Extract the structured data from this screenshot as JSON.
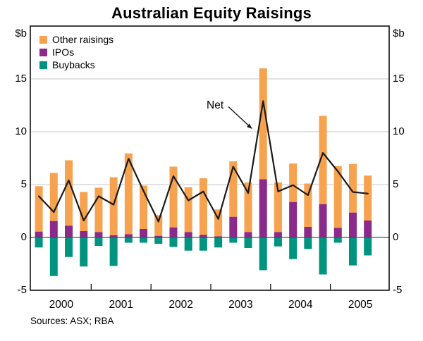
{
  "title": "Australian Equity Raisings",
  "unit_left": "$b",
  "unit_right": "$b",
  "annotation": {
    "net_label": "Net"
  },
  "sources": "Sources: ASX; RBA",
  "colors": {
    "other_raisings": "#F7A24F",
    "ipos": "#8A2A8A",
    "buybacks": "#009480",
    "net_line": "#1a1a1a",
    "gridline": "#c7c7c7",
    "zero_line": "#4d4d4d",
    "border": "#000000"
  },
  "legend": {
    "items": [
      {
        "label": "Other raisings",
        "color": "#F7A24F"
      },
      {
        "label": "IPOs",
        "color": "#8A2A8A"
      },
      {
        "label": "Buybacks",
        "color": "#009480"
      }
    ]
  },
  "chart_data": {
    "type": "bar",
    "subtype": "stacked-bar-with-line",
    "title": "Australian Equity Raisings",
    "ylabel": "$b",
    "ylim": [
      -5,
      20
    ],
    "yticks": [
      -5,
      0,
      5,
      10,
      15
    ],
    "grid": "horizontal",
    "legend_position": "top-left-inside",
    "x_unit": "quarter",
    "year_labels": [
      "2000",
      "2001",
      "2002",
      "2003",
      "2004",
      "2005"
    ],
    "categories": [
      "2000 Q1",
      "2000 Q2",
      "2000 Q3",
      "2000 Q4",
      "2001 Q1",
      "2001 Q2",
      "2001 Q3",
      "2001 Q4",
      "2002 Q1",
      "2002 Q2",
      "2002 Q3",
      "2002 Q4",
      "2003 Q1",
      "2003 Q2",
      "2003 Q3",
      "2003 Q4",
      "2004 Q1",
      "2004 Q2",
      "2004 Q3",
      "2004 Q4",
      "2005 Q1",
      "2005 Q2",
      "2005 Q3"
    ],
    "series": [
      {
        "name": "Other raisings",
        "type": "bar",
        "stack": "raisings",
        "color": "#F7A24F",
        "values": [
          4.3,
          4.55,
          6.2,
          3.7,
          4.2,
          5.5,
          7.65,
          4.1,
          1.95,
          5.75,
          4.25,
          5.35,
          2.55,
          5.25,
          4.7,
          10.5,
          4.7,
          3.65,
          4.1,
          8.35,
          5.85,
          4.6,
          4.25
        ]
      },
      {
        "name": "IPOs",
        "type": "bar",
        "stack": "raisings",
        "color": "#8A2A8A",
        "values": [
          0.55,
          1.55,
          1.1,
          0.6,
          0.5,
          0.2,
          0.3,
          0.8,
          0.15,
          0.95,
          0.5,
          0.25,
          0.1,
          1.95,
          0.5,
          5.5,
          0.5,
          3.35,
          1.0,
          3.15,
          0.9,
          2.35,
          1.6
        ]
      },
      {
        "name": "Buybacks",
        "type": "bar",
        "stack": "raisings",
        "color": "#009480",
        "values": [
          -0.95,
          -3.65,
          -1.85,
          -2.75,
          -0.8,
          -2.7,
          -0.5,
          -0.5,
          -0.6,
          -0.9,
          -1.25,
          -1.25,
          -0.95,
          -0.5,
          -1.0,
          -3.1,
          -0.85,
          -2.05,
          -1.1,
          -3.5,
          -0.5,
          -2.65,
          -1.7
        ]
      },
      {
        "name": "Net",
        "type": "line",
        "color": "#1a1a1a",
        "values": [
          3.9,
          2.4,
          5.4,
          1.6,
          3.9,
          3.1,
          7.45,
          4.4,
          1.5,
          5.8,
          3.5,
          4.35,
          1.75,
          6.7,
          4.2,
          12.9,
          4.35,
          4.95,
          4.0,
          8.0,
          6.25,
          4.3,
          4.15
        ]
      }
    ]
  }
}
